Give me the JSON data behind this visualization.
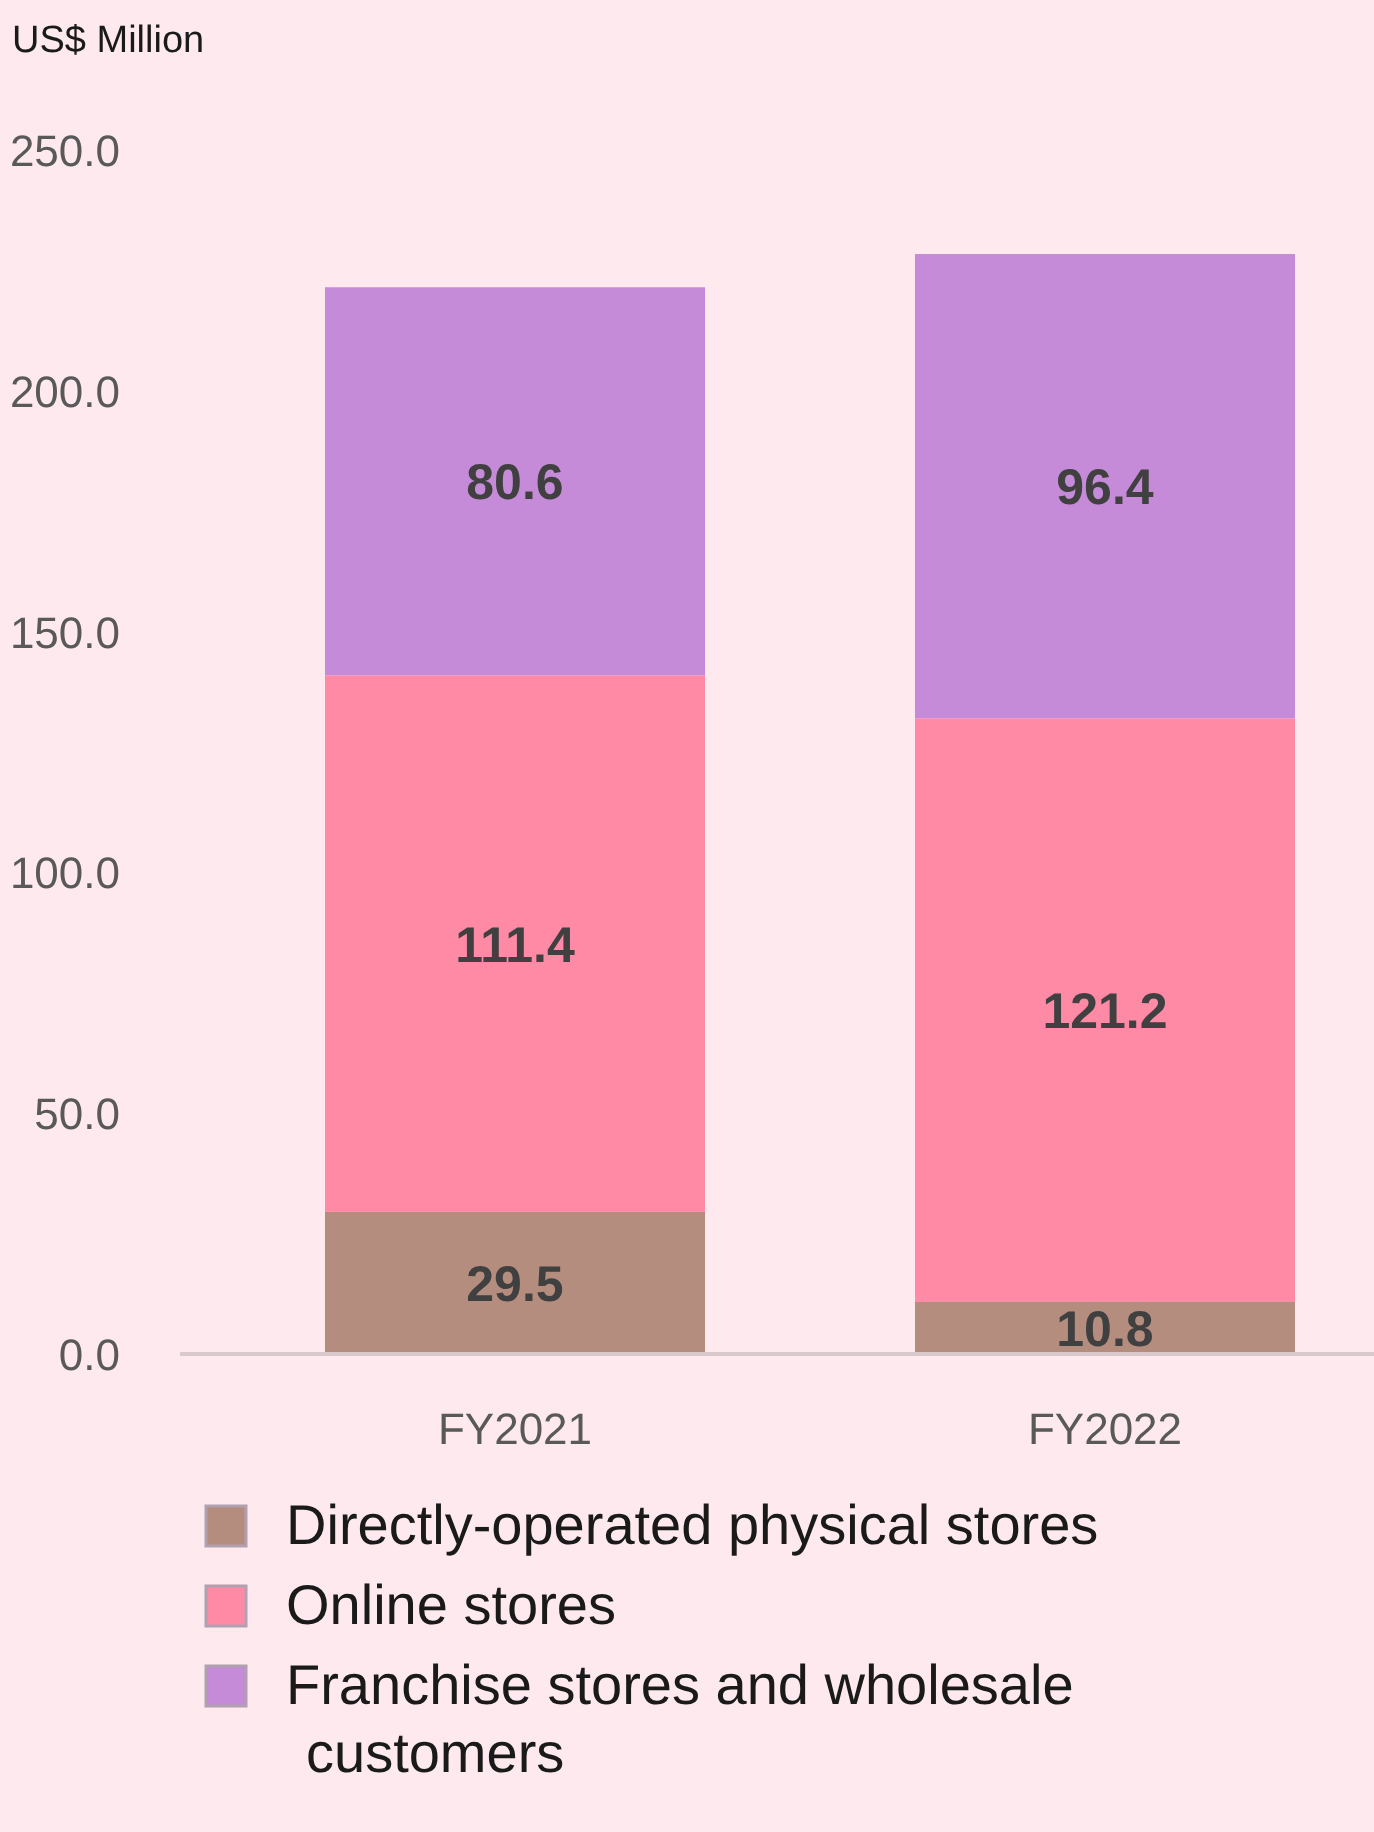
{
  "chart_data": {
    "type": "bar",
    "ylabel": "US$ Million",
    "categories": [
      "FY2021",
      "FY2022"
    ],
    "stacked": true,
    "series": [
      {
        "name": "Directly-operated physical stores",
        "color": "#b58d7f",
        "values": [
          29.5,
          10.8
        ]
      },
      {
        "name": "Online stores",
        "color": "#ff8aa6",
        "values": [
          111.4,
          121.2
        ]
      },
      {
        "name": "Franchise stores and wholesale customers",
        "color": "#c58ad8",
        "values": [
          80.6,
          96.4
        ]
      }
    ],
    "ylim": [
      0,
      250
    ],
    "yticks": [
      {
        "value": 0,
        "label": "0.0"
      },
      {
        "value": 50,
        "label": "50.0"
      },
      {
        "value": 100,
        "label": "100.0"
      },
      {
        "value": 150,
        "label": "150.0"
      },
      {
        "value": 200,
        "label": "200.0"
      },
      {
        "value": 250,
        "label": "250.0"
      }
    ],
    "data_labels": true,
    "legend": "bottom",
    "grid": false
  }
}
